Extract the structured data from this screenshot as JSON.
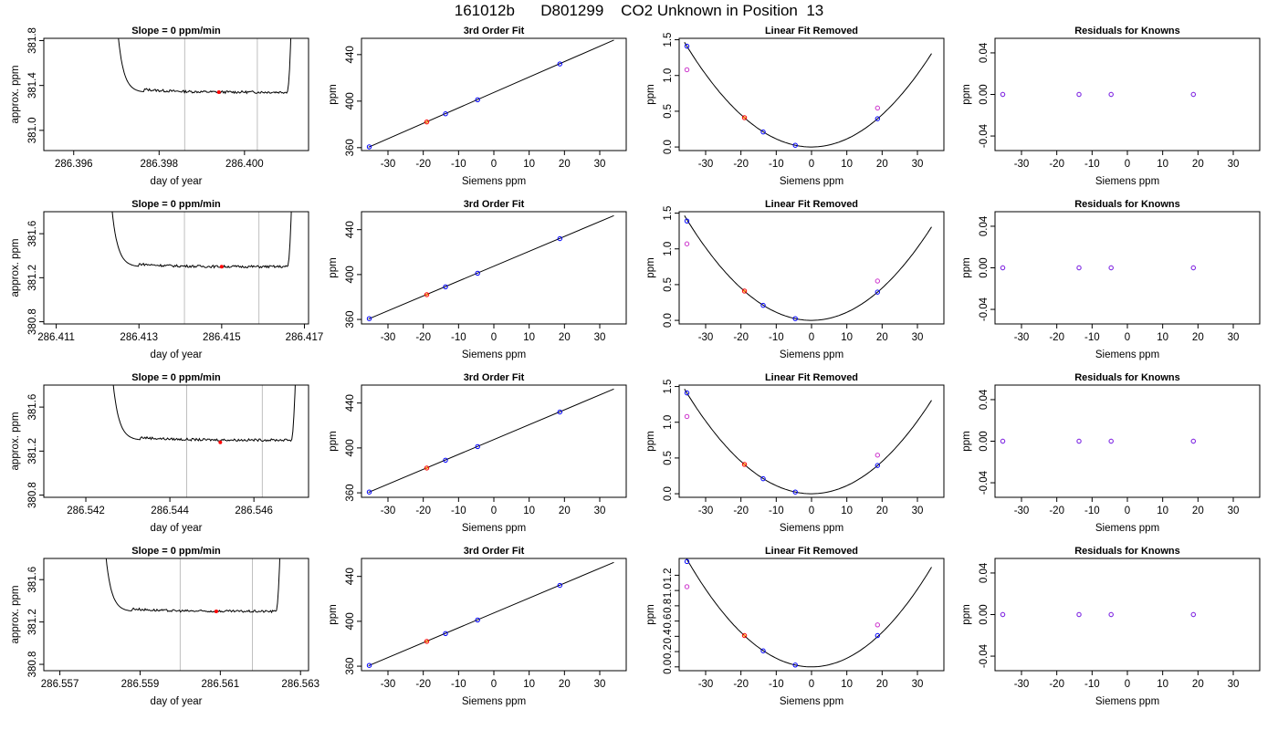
{
  "page_title": "161012b      D801299    CO2 Unknown in Position  13",
  "colors": {
    "axis": "#000000",
    "vline": "#bfbfbf",
    "known": "#0000ff",
    "unknown": "#ff0000",
    "alt": "#cc33cc",
    "curve": "#000000"
  },
  "chart_data": [
    {
      "row": 1,
      "type": "line",
      "title": "Slope =  0  ppm/min",
      "xlabel": "day of year",
      "ylabel": "approx. ppm",
      "xlim": [
        286.3953,
        286.4015
      ],
      "ylim": [
        380.82,
        381.82
      ],
      "xticks": [
        286.396,
        286.398,
        286.4
      ],
      "xtick_labels": [
        "286.396",
        "286.398",
        "286.400"
      ],
      "yticks": [
        381.0,
        381.4,
        381.8
      ],
      "ytick_labels": [
        "381.0",
        "381.4",
        "381.8"
      ],
      "vlines": [
        286.3986,
        286.4003
      ],
      "trace_start": 286.397,
      "trace_end": 286.4011,
      "trace_level": 381.34,
      "trace_peak": 382.0,
      "marker": {
        "x": 286.3994,
        "y": 381.34
      }
    },
    {
      "row": 2,
      "type": "line",
      "title": "Slope =  0  ppm/min",
      "xlabel": "day of year",
      "ylabel": "approx. ppm",
      "xlim": [
        286.4107,
        286.4171
      ],
      "ylim": [
        380.78,
        381.8
      ],
      "xticks": [
        286.411,
        286.413,
        286.415,
        286.417
      ],
      "xtick_labels": [
        "286.411",
        "286.413",
        "286.415",
        "286.417"
      ],
      "yticks": [
        380.8,
        381.2,
        381.6
      ],
      "ytick_labels": [
        "380.8",
        "381.2",
        "381.6"
      ],
      "vlines": [
        286.4141,
        286.4159
      ],
      "trace_start": 286.4123,
      "trace_end": 286.4167,
      "trace_level": 381.3,
      "trace_peak": 382.0,
      "marker": {
        "x": 286.415,
        "y": 381.3
      }
    },
    {
      "row": 3,
      "type": "line",
      "title": "Slope =  0  ppm/min",
      "xlabel": "day of year",
      "ylabel": "approx. ppm",
      "xlim": [
        286.541,
        286.5473
      ],
      "ylim": [
        380.78,
        381.8
      ],
      "xticks": [
        286.542,
        286.544,
        286.546
      ],
      "xtick_labels": [
        "286.542",
        "286.544",
        "286.546"
      ],
      "yticks": [
        380.8,
        381.2,
        381.6
      ],
      "ytick_labels": [
        "380.8",
        "381.2",
        "381.6"
      ],
      "vlines": [
        286.5444,
        286.5462
      ],
      "trace_start": 286.5426,
      "trace_end": 286.547,
      "trace_level": 381.3,
      "trace_peak": 382.0,
      "marker": {
        "x": 286.5452,
        "y": 381.28
      }
    },
    {
      "row": 4,
      "type": "line",
      "title": "Slope =  0  ppm/min",
      "xlabel": "day of year",
      "ylabel": "approx. ppm",
      "xlim": [
        286.5566,
        286.5632
      ],
      "ylim": [
        380.74,
        381.8
      ],
      "xticks": [
        286.557,
        286.559,
        286.561,
        286.563
      ],
      "xtick_labels": [
        "286.557",
        "286.559",
        "286.561",
        "286.563"
      ],
      "yticks": [
        380.8,
        381.2,
        381.6
      ],
      "ytick_labels": [
        "380.8",
        "381.2",
        "381.6"
      ],
      "vlines": [
        286.56,
        286.5618
      ],
      "trace_start": 286.5581,
      "trace_end": 286.5625,
      "trace_level": 381.3,
      "trace_peak": 382.0,
      "marker": {
        "x": 286.5609,
        "y": 381.3
      }
    },
    {
      "row": 1,
      "type": "scatter",
      "title": "3rd Order Fit",
      "xlabel": "Siemens ppm",
      "ylabel": "ppm",
      "xlim": [
        -37.5,
        37.5
      ],
      "ylim": [
        357.5,
        454
      ],
      "xticks": [
        -30,
        -20,
        -10,
        0,
        10,
        20,
        30
      ],
      "xtick_labels": [
        "-30",
        "-20",
        "-10",
        "0",
        "10",
        "20",
        "30"
      ],
      "yticks": [
        360,
        400,
        440
      ],
      "ytick_labels": [
        "360",
        "400",
        "440"
      ],
      "line": {
        "x0": -35.5,
        "y0": 360.4,
        "x1": 34,
        "y1": 452.5
      },
      "known": [
        {
          "x": -35.3,
          "y": 360.7
        },
        {
          "x": -13.7,
          "y": 389.1
        },
        {
          "x": -4.6,
          "y": 401.2
        },
        {
          "x": 18.7,
          "y": 432.0
        }
      ],
      "unknown": [
        {
          "x": -19,
          "y": 382.1
        }
      ]
    },
    {
      "row": 2,
      "type": "scatter",
      "title": "3rd Order Fit",
      "xlabel": "Siemens ppm",
      "ylabel": "ppm",
      "xlim": [
        -37.5,
        37.5
      ],
      "ylim": [
        356,
        456
      ],
      "xticks": [
        -30,
        -20,
        -10,
        0,
        10,
        20,
        30
      ],
      "xtick_labels": [
        "-30",
        "-20",
        "-10",
        "0",
        "10",
        "20",
        "30"
      ],
      "yticks": [
        360,
        400,
        440
      ],
      "ytick_labels": [
        "360",
        "400",
        "440"
      ],
      "line": {
        "x0": -35.5,
        "y0": 360.4,
        "x1": 34,
        "y1": 452.5
      },
      "known": [
        {
          "x": -35.3,
          "y": 360.7
        },
        {
          "x": -13.7,
          "y": 389.1
        },
        {
          "x": -4.6,
          "y": 401.2
        },
        {
          "x": 18.7,
          "y": 432.0
        }
      ],
      "unknown": [
        {
          "x": -19,
          "y": 382.1
        }
      ]
    },
    {
      "row": 3,
      "type": "scatter",
      "title": "3rd Order Fit",
      "xlabel": "Siemens ppm",
      "ylabel": "ppm",
      "xlim": [
        -37.5,
        37.5
      ],
      "ylim": [
        356,
        456
      ],
      "xticks": [
        -30,
        -20,
        -10,
        0,
        10,
        20,
        30
      ],
      "xtick_labels": [
        "-30",
        "-20",
        "-10",
        "0",
        "10",
        "20",
        "30"
      ],
      "yticks": [
        360,
        400,
        440
      ],
      "ytick_labels": [
        "360",
        "400",
        "440"
      ],
      "line": {
        "x0": -35.5,
        "y0": 360.4,
        "x1": 34,
        "y1": 452.5
      },
      "known": [
        {
          "x": -35.3,
          "y": 360.7
        },
        {
          "x": -13.7,
          "y": 389.1
        },
        {
          "x": -4.6,
          "y": 401.2
        },
        {
          "x": 18.7,
          "y": 432.0
        }
      ],
      "unknown": [
        {
          "x": -19,
          "y": 382.1
        }
      ]
    },
    {
      "row": 4,
      "type": "scatter",
      "title": "3rd Order Fit",
      "xlabel": "Siemens ppm",
      "ylabel": "ppm",
      "xlim": [
        -37.5,
        37.5
      ],
      "ylim": [
        356,
        456
      ],
      "xticks": [
        -30,
        -20,
        -10,
        0,
        10,
        20,
        30
      ],
      "xtick_labels": [
        "-30",
        "-20",
        "-10",
        "0",
        "10",
        "20",
        "30"
      ],
      "yticks": [
        360,
        400,
        440
      ],
      "ytick_labels": [
        "360",
        "400",
        "440"
      ],
      "line": {
        "x0": -35.5,
        "y0": 360.4,
        "x1": 34,
        "y1": 452.5
      },
      "known": [
        {
          "x": -35.3,
          "y": 360.7
        },
        {
          "x": -13.7,
          "y": 389.1
        },
        {
          "x": -4.6,
          "y": 401.2
        },
        {
          "x": 18.7,
          "y": 432.0
        }
      ],
      "unknown": [
        {
          "x": -19,
          "y": 382.1
        }
      ]
    },
    {
      "row": 1,
      "type": "scatter",
      "title": "Linear Fit Removed",
      "xlabel": "Siemens ppm",
      "ylabel": "ppm",
      "xlim": [
        -37.5,
        37.5
      ],
      "ylim": [
        -0.05,
        1.52
      ],
      "xticks": [
        -30,
        -20,
        -10,
        0,
        10,
        20,
        30
      ],
      "xtick_labels": [
        "-30",
        "-20",
        "-10",
        "0",
        "10",
        "20",
        "30"
      ],
      "yticks": [
        0.0,
        0.5,
        1.0,
        1.5
      ],
      "ytick_labels": [
        "0.0",
        "0.5",
        "1.0",
        "1.5"
      ],
      "curve_coef": 0.00113,
      "curve_range": [
        -36,
        34
      ],
      "known": [
        {
          "x": -35.3,
          "y": 1.41
        },
        {
          "x": -13.7,
          "y": 0.21
        },
        {
          "x": -4.6,
          "y": 0.024
        },
        {
          "x": 18.7,
          "y": 0.395
        }
      ],
      "alt": [
        {
          "x": -35.3,
          "y": 1.08
        },
        {
          "x": 18.7,
          "y": 0.545
        }
      ],
      "unknown": [
        {
          "x": -19,
          "y": 0.41
        }
      ]
    },
    {
      "row": 2,
      "type": "scatter",
      "title": "Linear Fit Removed",
      "xlabel": "Siemens ppm",
      "ylabel": "ppm",
      "xlim": [
        -37.5,
        37.5
      ],
      "ylim": [
        -0.05,
        1.52
      ],
      "xticks": [
        -30,
        -20,
        -10,
        0,
        10,
        20,
        30
      ],
      "xtick_labels": [
        "-30",
        "-20",
        "-10",
        "0",
        "10",
        "20",
        "30"
      ],
      "yticks": [
        0.0,
        0.5,
        1.0,
        1.5
      ],
      "ytick_labels": [
        "0.0",
        "0.5",
        "1.0",
        "1.5"
      ],
      "curve_coef": 0.00113,
      "curve_range": [
        -36,
        34
      ],
      "known": [
        {
          "x": -35.3,
          "y": 1.39
        },
        {
          "x": -13.7,
          "y": 0.21
        },
        {
          "x": -4.6,
          "y": 0.024
        },
        {
          "x": 18.7,
          "y": 0.395
        }
      ],
      "alt": [
        {
          "x": -35.3,
          "y": 1.07
        },
        {
          "x": 18.7,
          "y": 0.55
        }
      ],
      "unknown": [
        {
          "x": -19,
          "y": 0.41
        }
      ]
    },
    {
      "row": 3,
      "type": "scatter",
      "title": "Linear Fit Removed",
      "xlabel": "Siemens ppm",
      "ylabel": "ppm",
      "xlim": [
        -37.5,
        37.5
      ],
      "ylim": [
        -0.05,
        1.52
      ],
      "xticks": [
        -30,
        -20,
        -10,
        0,
        10,
        20,
        30
      ],
      "xtick_labels": [
        "-30",
        "-20",
        "-10",
        "0",
        "10",
        "20",
        "30"
      ],
      "yticks": [
        0.0,
        0.5,
        1.0,
        1.5
      ],
      "ytick_labels": [
        "0.0",
        "0.5",
        "1.0",
        "1.5"
      ],
      "curve_coef": 0.00113,
      "curve_range": [
        -36,
        34
      ],
      "known": [
        {
          "x": -35.3,
          "y": 1.41
        },
        {
          "x": -13.7,
          "y": 0.21
        },
        {
          "x": -4.6,
          "y": 0.024
        },
        {
          "x": 18.7,
          "y": 0.395
        }
      ],
      "alt": [
        {
          "x": -35.3,
          "y": 1.08
        },
        {
          "x": 18.7,
          "y": 0.54
        }
      ],
      "unknown": [
        {
          "x": -19,
          "y": 0.41
        }
      ]
    },
    {
      "row": 4,
      "type": "scatter",
      "title": "Linear Fit Removed",
      "xlabel": "Siemens ppm",
      "ylabel": "ppm",
      "xlim": [
        -37.5,
        37.5
      ],
      "ylim": [
        -0.05,
        1.42
      ],
      "xticks": [
        -30,
        -20,
        -10,
        0,
        10,
        20,
        30
      ],
      "xtick_labels": [
        "-30",
        "-20",
        "-10",
        "0",
        "10",
        "20",
        "30"
      ],
      "yticks": [
        0.0,
        0.2,
        0.4,
        0.6,
        0.8,
        1.0,
        1.2
      ],
      "ytick_labels": [
        "0.0",
        "0.2",
        "0.4",
        "0.6",
        "0.8",
        "1.0",
        "1.2"
      ],
      "curve_coef": 0.00113,
      "curve_range": [
        -36,
        34
      ],
      "known": [
        {
          "x": -35.3,
          "y": 1.38
        },
        {
          "x": -13.7,
          "y": 0.21
        },
        {
          "x": -4.6,
          "y": 0.024
        },
        {
          "x": 18.7,
          "y": 0.41
        }
      ],
      "alt": [
        {
          "x": -35.3,
          "y": 1.05
        },
        {
          "x": 18.7,
          "y": 0.55
        }
      ],
      "unknown": [
        {
          "x": -19,
          "y": 0.41
        }
      ]
    },
    {
      "row": 1,
      "type": "scatter",
      "title": "Residuals for Knowns",
      "xlabel": "Siemens ppm",
      "ylabel": "ppm",
      "xlim": [
        -37.5,
        37.5
      ],
      "ylim": [
        -0.054,
        0.054
      ],
      "xticks": [
        -30,
        -20,
        -10,
        0,
        10,
        20,
        30
      ],
      "xtick_labels": [
        "-30",
        "-20",
        "-10",
        "0",
        "10",
        "20",
        "30"
      ],
      "yticks": [
        -0.04,
        0.0,
        0.04
      ],
      "ytick_labels": [
        "-0.04",
        "0.00",
        "0.04"
      ],
      "known": [
        {
          "x": -35.3,
          "y": 0
        },
        {
          "x": -13.7,
          "y": 0
        },
        {
          "x": -4.6,
          "y": 0
        },
        {
          "x": 18.7,
          "y": 0
        }
      ]
    },
    {
      "row": 2,
      "type": "scatter",
      "title": "Residuals for Knowns",
      "xlabel": "Siemens ppm",
      "ylabel": "ppm",
      "xlim": [
        -37.5,
        37.5
      ],
      "ylim": [
        -0.054,
        0.054
      ],
      "xticks": [
        -30,
        -20,
        -10,
        0,
        10,
        20,
        30
      ],
      "xtick_labels": [
        "-30",
        "-20",
        "-10",
        "0",
        "10",
        "20",
        "30"
      ],
      "yticks": [
        -0.04,
        0.0,
        0.04
      ],
      "ytick_labels": [
        "-0.04",
        "0.00",
        "0.04"
      ],
      "known": [
        {
          "x": -35.3,
          "y": 0
        },
        {
          "x": -13.7,
          "y": 0
        },
        {
          "x": -4.6,
          "y": 0
        },
        {
          "x": 18.7,
          "y": 0
        }
      ]
    },
    {
      "row": 3,
      "type": "scatter",
      "title": "Residuals for Knowns",
      "xlabel": "Siemens ppm",
      "ylabel": "ppm",
      "xlim": [
        -37.5,
        37.5
      ],
      "ylim": [
        -0.054,
        0.054
      ],
      "xticks": [
        -30,
        -20,
        -10,
        0,
        10,
        20,
        30
      ],
      "xtick_labels": [
        "-30",
        "-20",
        "-10",
        "0",
        "10",
        "20",
        "30"
      ],
      "yticks": [
        -0.04,
        0.0,
        0.04
      ],
      "ytick_labels": [
        "-0.04",
        "0.00",
        "0.04"
      ],
      "known": [
        {
          "x": -35.3,
          "y": 0
        },
        {
          "x": -13.7,
          "y": 0
        },
        {
          "x": -4.6,
          "y": 0
        },
        {
          "x": 18.7,
          "y": 0
        }
      ]
    },
    {
      "row": 4,
      "type": "scatter",
      "title": "Residuals for Knowns",
      "xlabel": "Siemens ppm",
      "ylabel": "ppm",
      "xlim": [
        -37.5,
        37.5
      ],
      "ylim": [
        -0.054,
        0.054
      ],
      "xticks": [
        -30,
        -20,
        -10,
        0,
        10,
        20,
        30
      ],
      "xtick_labels": [
        "-30",
        "-20",
        "-10",
        "0",
        "10",
        "20",
        "30"
      ],
      "yticks": [
        -0.04,
        0.0,
        0.04
      ],
      "ytick_labels": [
        "-0.04",
        "0.00",
        "0.04"
      ],
      "known": [
        {
          "x": -35.3,
          "y": 0
        },
        {
          "x": -13.7,
          "y": 0
        },
        {
          "x": -4.6,
          "y": 0
        },
        {
          "x": 18.7,
          "y": 0
        }
      ]
    }
  ]
}
